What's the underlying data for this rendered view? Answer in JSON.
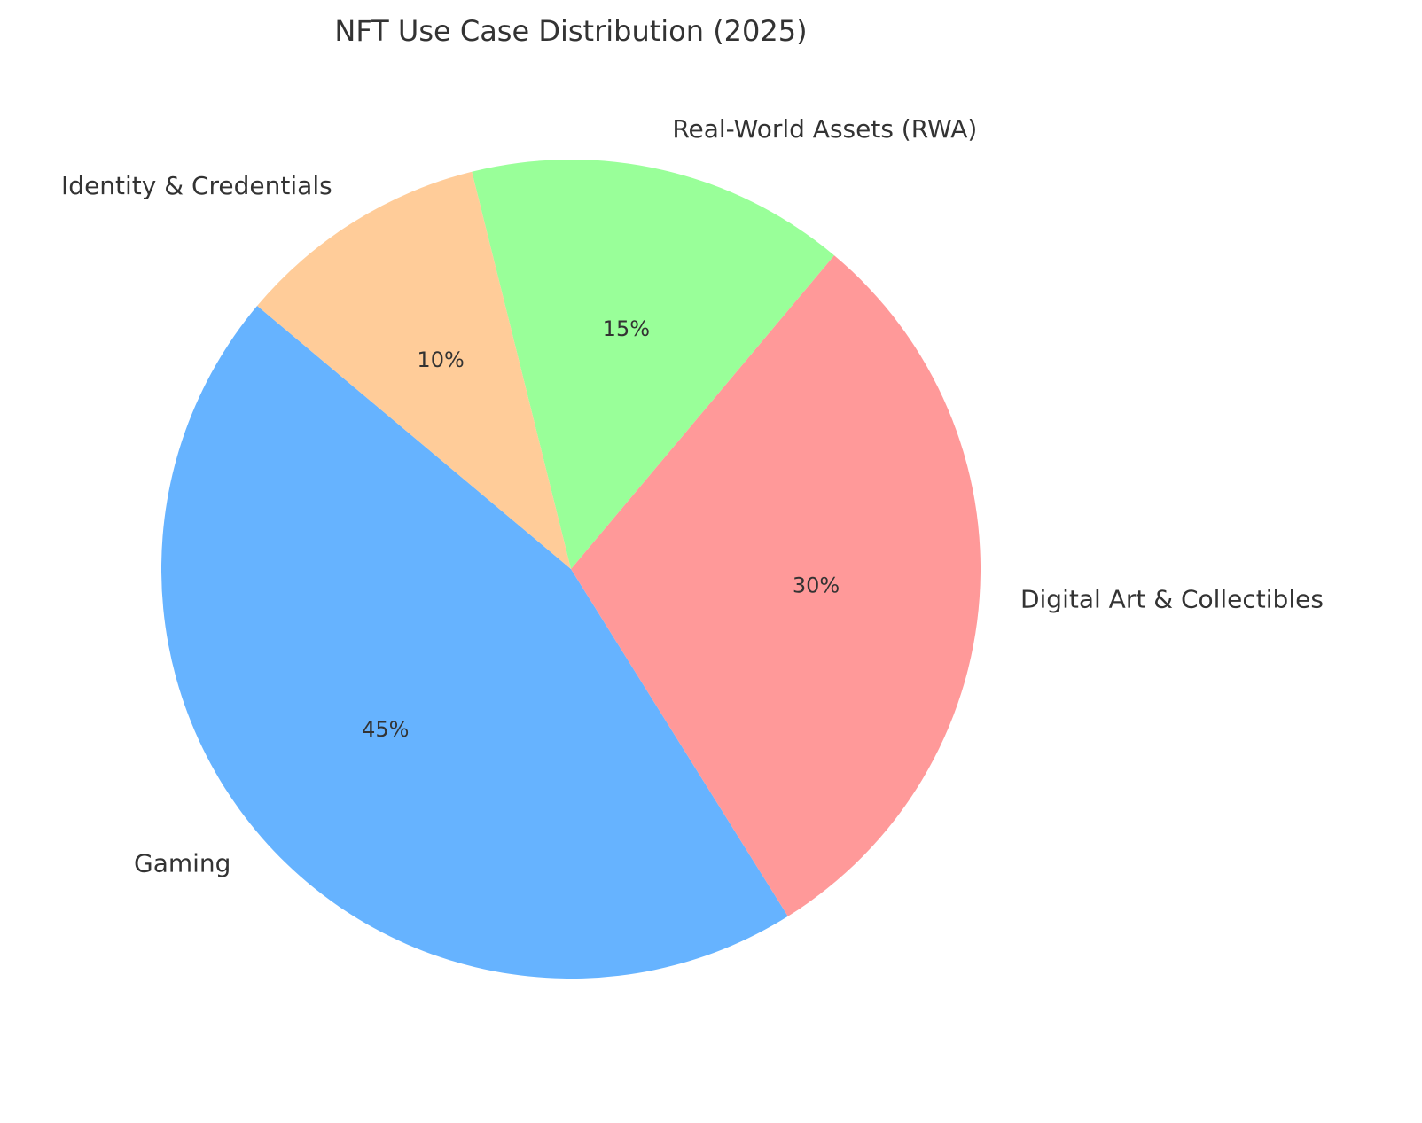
{
  "chart_data": {
    "type": "pie",
    "title": "NFT Use Case Distribution (2025)",
    "categories": [
      "Gaming",
      "Digital Art & Collectibles",
      "Real-World Assets (RWA)",
      "Identity & Credentials"
    ],
    "values": [
      45,
      30,
      15,
      10
    ],
    "value_labels": [
      "45%",
      "30%",
      "15%",
      "10%"
    ],
    "colors": [
      "#66b3ff",
      "#ff9999",
      "#99ff99",
      "#ffcc99"
    ],
    "startangle": 140,
    "counterclock": true
  }
}
